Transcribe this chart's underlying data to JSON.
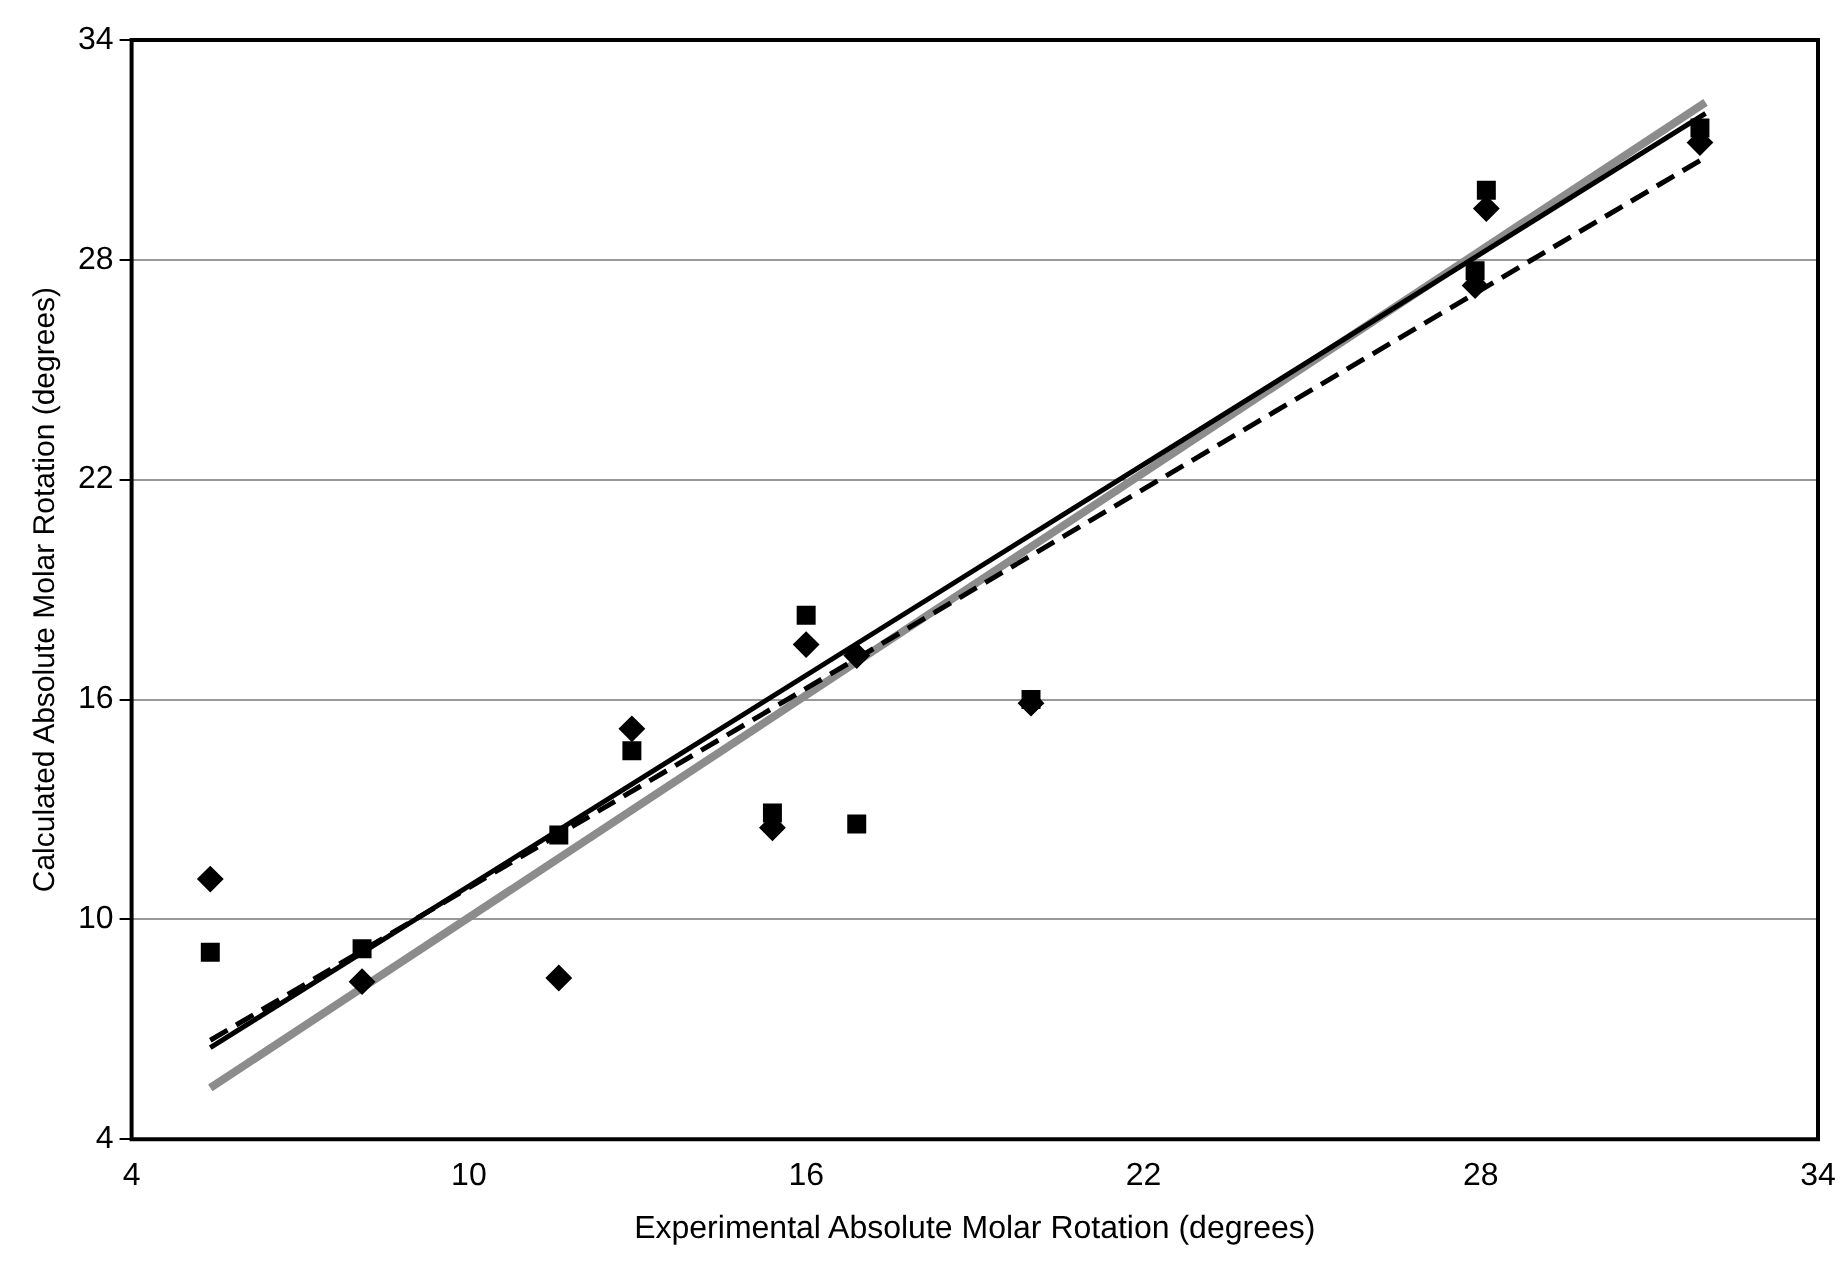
{
  "chart_data": {
    "type": "scatter",
    "xlabel": "Experimental Absolute Molar Rotation (degrees)",
    "ylabel": "Calculated Absolute Molar Rotation (degrees)",
    "xlim": [
      4,
      34
    ],
    "xticks": [
      4,
      10,
      16,
      22,
      28,
      34
    ],
    "ylim": [
      4,
      34
    ],
    "yticks": [
      4,
      10,
      16,
      22,
      28,
      34
    ],
    "grid": "y",
    "legend": false,
    "series": [
      {
        "marker": "diamond",
        "color": "#000000",
        "x": [
          5.4,
          8.1,
          11.6,
          12.9,
          15.4,
          16.0,
          16.9,
          20.0,
          27.9,
          28.1,
          31.9
        ],
        "values": [
          11.1,
          8.3,
          8.4,
          15.2,
          12.5,
          17.5,
          17.2,
          15.9,
          27.3,
          29.4,
          31.2
        ]
      },
      {
        "marker": "square",
        "color": "#000000",
        "x": [
          5.4,
          8.1,
          11.6,
          12.9,
          15.4,
          16.0,
          16.9,
          20.0,
          27.9,
          28.1,
          31.9
        ],
        "values": [
          9.1,
          9.2,
          12.3,
          14.6,
          12.9,
          18.3,
          12.6,
          16.0,
          27.7,
          29.9,
          31.6
        ]
      },
      {
        "type": "line",
        "line_style": "solid",
        "color": "#000000",
        "x": [
          5.4,
          32
        ],
        "values": [
          6.5,
          32.0
        ]
      },
      {
        "type": "line",
        "line_style": "dashed",
        "color": "#000000",
        "x": [
          5.4,
          32
        ],
        "values": [
          6.7,
          30.8
        ]
      },
      {
        "type": "line",
        "line_style": "solid",
        "color": "#8c8c8c",
        "x": [
          5.4,
          32
        ],
        "values": [
          5.4,
          32.3
        ]
      }
    ]
  }
}
